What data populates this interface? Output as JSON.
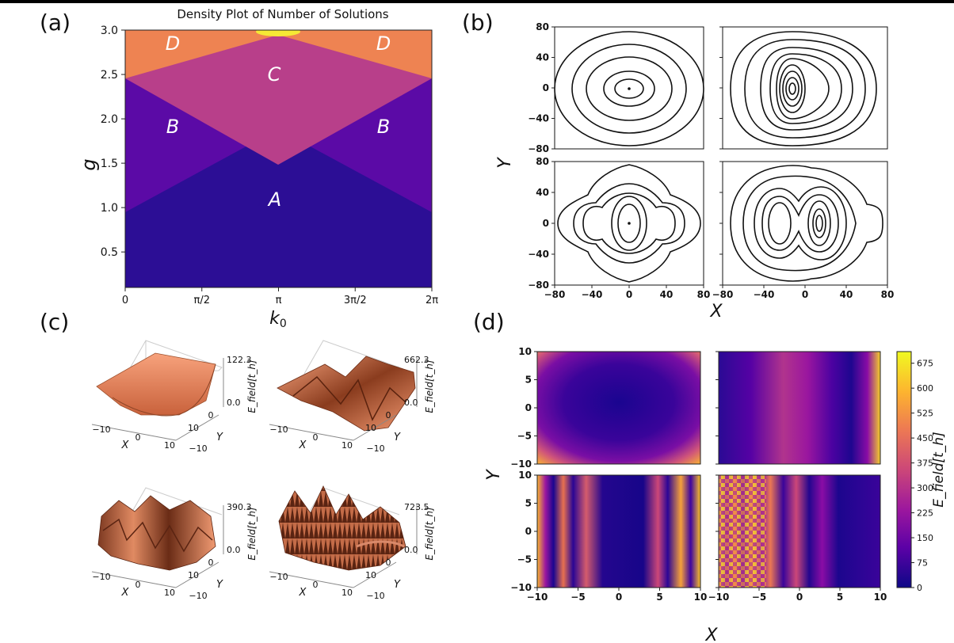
{
  "panel_labels": {
    "a": "(a)",
    "b": "(b)",
    "c": "(c)",
    "d": "(d)"
  },
  "chart_data": [
    {
      "panel": "(a)",
      "type": "heatmap",
      "title": "Density Plot of Number of Solutions",
      "xlabel": "k",
      "xlabel_sub": "0",
      "ylabel": "g",
      "xlim": [
        0,
        6.2832
      ],
      "ylim": [
        0.1,
        3.0
      ],
      "xticks": [
        "0",
        "π/2",
        "π",
        "3π/2",
        "2π"
      ],
      "yticks": [
        "0.5",
        "1.0",
        "1.5",
        "2.0",
        "2.5",
        "3.0"
      ],
      "region_labels": [
        "A",
        "B",
        "B",
        "C",
        "D",
        "D"
      ],
      "region_colors": {
        "A": "#2c0e95",
        "B": "#5b0aa6",
        "C": "#b83f8a",
        "D": "#ee8352",
        "peak": "#f6e935"
      }
    },
    {
      "panel": "(b)",
      "type": "line",
      "subtype": "contour",
      "xlabel": "X",
      "ylabel": "Y",
      "xlim": [
        -80,
        80
      ],
      "ylim": [
        -80,
        80
      ],
      "xticks": [
        "−80",
        "−40",
        "0",
        "40",
        "80"
      ],
      "yticks": [
        "80",
        "40",
        "0",
        "−40",
        "−80"
      ],
      "subplots": 4
    },
    {
      "panel": "(c)",
      "type": "heatmap",
      "subtype": "surface3d",
      "xlabel": "X",
      "ylabel": "Y",
      "zlabel": "E_field[t_h]",
      "xticks": [
        "−10",
        "0",
        "10"
      ],
      "yticks": [
        "10",
        "0",
        "−10"
      ],
      "zmax": [
        "122.3",
        "662.3",
        "390.3",
        "723.5"
      ],
      "zmin": "0.0"
    },
    {
      "panel": "(d)",
      "type": "heatmap",
      "xlabel": "X",
      "ylabel": "Y",
      "xlim": [
        -10,
        10
      ],
      "ylim": [
        -10,
        10
      ],
      "xticks": [
        "−10",
        "−5",
        "0",
        "5",
        "10"
      ],
      "yticks": [
        "10",
        "5",
        "0",
        "−5",
        "−10"
      ],
      "colorbar_label": "E_field[t_h]",
      "colorbar_ticks": [
        "675",
        "600",
        "525",
        "450",
        "375",
        "300",
        "225",
        "150",
        "75",
        "0"
      ],
      "colormap": "plasma",
      "cmap_stops": [
        "#0d0887",
        "#5c01a6",
        "#9c179e",
        "#cc4778",
        "#ed7953",
        "#fdb42f",
        "#f0f921"
      ]
    }
  ]
}
